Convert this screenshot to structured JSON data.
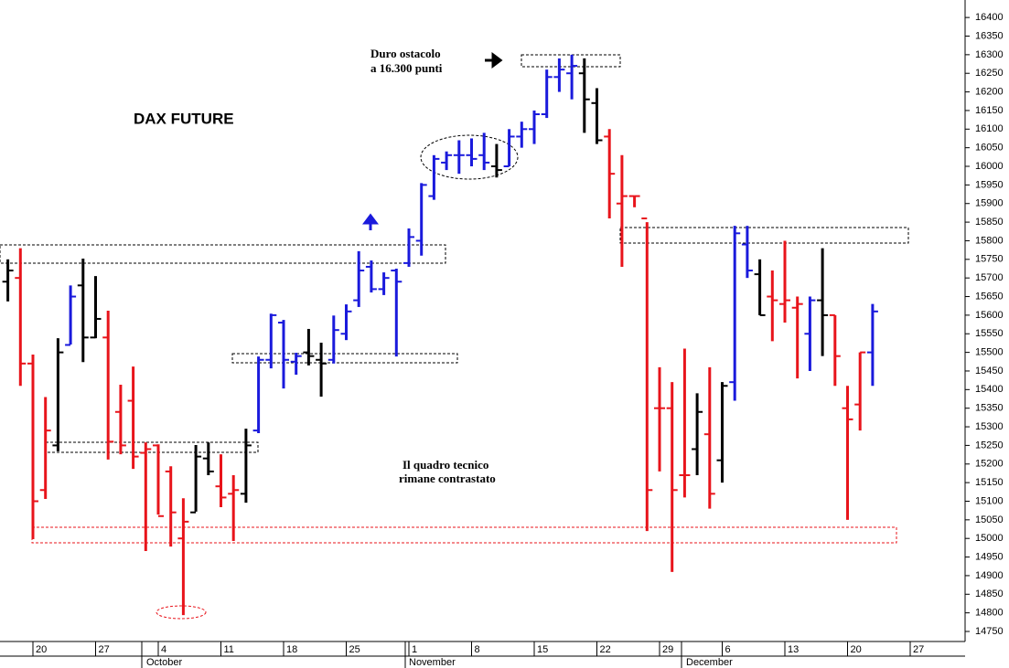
{
  "chart_data": {
    "type": "ohlc",
    "title": "DAX FUTURE",
    "annotations": [
      [
        "Duro ostacolo",
        "a 16.300 punti"
      ],
      [
        "Il quadro tecnico",
        "rimane contrastato"
      ]
    ],
    "months": [
      "October",
      "November",
      "December"
    ],
    "categories": [
      null,
      null,
      "20",
      null,
      null,
      null,
      null,
      "27",
      null,
      null,
      null,
      null,
      "4",
      null,
      null,
      null,
      null,
      "11",
      null,
      null,
      null,
      null,
      "18",
      null,
      null,
      null,
      null,
      "25",
      null,
      null,
      null,
      null,
      "1",
      null,
      null,
      null,
      null,
      "8",
      null,
      null,
      null,
      null,
      "15",
      null,
      null,
      null,
      null,
      "22",
      null,
      null,
      null,
      null,
      "29",
      null,
      null,
      null,
      null,
      "6",
      null,
      null,
      null,
      null,
      "13",
      null,
      null,
      null,
      null,
      "20",
      null,
      null,
      null,
      null,
      "27",
      null,
      null,
      null,
      null
    ],
    "open": [
      15690,
      15700,
      15470,
      15130,
      15250,
      15520,
      15680,
      15540,
      15540,
      15340,
      15370,
      15230,
      15250,
      15180,
      15000,
      15070,
      15215,
      15140,
      15120,
      15120,
      15290,
      15480,
      15580,
      15475,
      15500,
      15480,
      15480,
      15550,
      15640,
      15730,
      15670,
      15720,
      15740,
      15800,
      15920,
      16010,
      16030,
      16030,
      16030,
      16000,
      16000,
      16080,
      16100,
      16140,
      16240,
      16250,
      16250,
      16170,
      16080,
      15900,
      15920,
      15860,
      15350,
      15350,
      15170,
      15240,
      15280,
      15210,
      15420,
      15790,
      15710,
      15650,
      15630,
      15620,
      15550,
      15640,
      15600,
      15350,
      15360,
      15500,
      null,
      null,
      null,
      null,
      null,
      null,
      null
    ],
    "high": [
      15750,
      15780,
      15494,
      15380,
      15538,
      15680,
      15752,
      15705,
      15612,
      15413,
      15462,
      15258,
      15253,
      15194,
      15108,
      15251,
      15258,
      15226,
      15170,
      15295,
      15489,
      15604,
      15587,
      15499,
      15563,
      15526,
      15599,
      15629,
      15772,
      15747,
      15715,
      15725,
      15833,
      15955,
      16030,
      16040,
      16070,
      16075,
      16090,
      16060,
      16100,
      16120,
      16150,
      16260,
      16290,
      16300,
      16290,
      16210,
      16100,
      16030,
      15920,
      15850,
      15460,
      15420,
      15510,
      15390,
      15460,
      15420,
      15840,
      15840,
      15750,
      15720,
      15800,
      15650,
      15650,
      15780,
      15600,
      15410,
      15500,
      15630,
      null,
      null,
      null,
      null,
      null,
      null,
      null
    ],
    "low": [
      15637,
      15410,
      14998,
      15106,
      15234,
      15521,
      15474,
      15538,
      15212,
      15226,
      15187,
      14966,
      15064,
      14978,
      14794,
      15072,
      15170,
      15084,
      14993,
      15096,
      15283,
      15457,
      15403,
      15440,
      15465,
      15381,
      15470,
      15533,
      15622,
      15661,
      15654,
      15489,
      15730,
      15760,
      15910,
      15990,
      15980,
      16000,
      15990,
      15970,
      16000,
      16050,
      16060,
      16130,
      16200,
      16180,
      16090,
      16060,
      15860,
      15730,
      15890,
      15020,
      15180,
      14910,
      15110,
      15170,
      15080,
      15150,
      15370,
      15700,
      15600,
      15530,
      15580,
      15430,
      15450,
      15490,
      15410,
      15050,
      15290,
      15410,
      null,
      null,
      null,
      null,
      null,
      null,
      null
    ],
    "close": [
      15720,
      15470,
      15100,
      15290,
      15500,
      15650,
      15540,
      15590,
      15260,
      15250,
      15220,
      15240,
      15060,
      15070,
      15045,
      15220,
      15180,
      15110,
      15130,
      15250,
      15480,
      15600,
      15480,
      15490,
      15490,
      15470,
      15560,
      15610,
      15720,
      15670,
      15700,
      15690,
      15810,
      15950,
      16020,
      16030,
      16030,
      16020,
      16010,
      15990,
      16080,
      16100,
      16140,
      16240,
      16260,
      16270,
      16180,
      16070,
      15980,
      15920,
      15920,
      15130,
      15350,
      15130,
      15170,
      15340,
      15120,
      15410,
      15820,
      15720,
      15600,
      15640,
      15640,
      15630,
      15640,
      15600,
      15490,
      15320,
      15500,
      15610,
      null,
      null,
      null,
      null,
      null,
      null,
      null
    ],
    "colors": [
      "#000000",
      "#e8141b",
      "#e8141b",
      "#e8141b",
      "#000000",
      "#1a1adc",
      "#000000",
      "#000000",
      "#e8141b",
      "#e8141b",
      "#e8141b",
      "#e8141b",
      "#e8141b",
      "#e8141b",
      "#e8141b",
      "#000000",
      "#000000",
      "#e8141b",
      "#e8141b",
      "#000000",
      "#1a1adc",
      "#1a1adc",
      "#1a1adc",
      "#1a1adc",
      "#000000",
      "#000000",
      "#1a1adc",
      "#1a1adc",
      "#1a1adc",
      "#1a1adc",
      "#1a1adc",
      "#1a1adc",
      "#1a1adc",
      "#1a1adc",
      "#1a1adc",
      "#1a1adc",
      "#1a1adc",
      "#1a1adc",
      "#1a1adc",
      "#000000",
      "#1a1adc",
      "#1a1adc",
      "#1a1adc",
      "#1a1adc",
      "#1a1adc",
      "#1a1adc",
      "#000000",
      "#000000",
      "#e8141b",
      "#e8141b",
      "#e8141b",
      "#e8141b",
      "#e8141b",
      "#e8141b",
      "#e8141b",
      "#000000",
      "#e8141b",
      "#000000",
      "#1a1adc",
      "#1a1adc",
      "#000000",
      "#e8141b",
      "#e8141b",
      "#e8141b",
      "#1a1adc",
      "#000000",
      "#e8141b",
      "#e8141b",
      "#e8141b",
      "#1a1adc",
      null,
      null,
      null,
      null,
      null,
      null,
      null
    ],
    "ylim": [
      14723,
      16447
    ],
    "yticks": [
      14750,
      14800,
      14850,
      14900,
      14950,
      15000,
      15050,
      15100,
      15150,
      15200,
      15250,
      15300,
      15350,
      15400,
      15450,
      15500,
      15550,
      15600,
      15650,
      15700,
      15750,
      15800,
      15850,
      15900,
      15950,
      16000,
      16050,
      16100,
      16150,
      16200,
      16250,
      16300,
      16350,
      16400
    ]
  }
}
